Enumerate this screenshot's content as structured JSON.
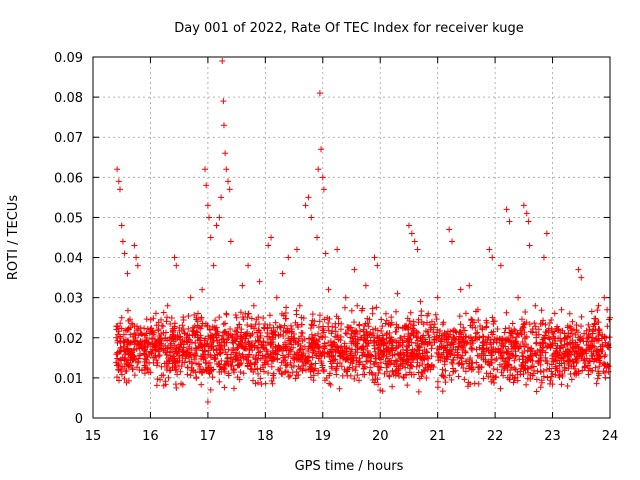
{
  "chart_data": {
    "type": "scatter",
    "title": "Day 001 of 2022, Rate Of TEC Index for receiver kuge",
    "xlabel": "GPS time / hours",
    "ylabel": "ROTI / TECUs",
    "xlim": [
      15,
      24
    ],
    "ylim": [
      0,
      0.09
    ],
    "x_ticks": [
      15,
      16,
      17,
      18,
      19,
      20,
      21,
      22,
      23,
      24
    ],
    "x_tick_labels": [
      "15",
      "16",
      "17",
      "18",
      "19",
      "20",
      "21",
      "22",
      "23",
      "24"
    ],
    "y_ticks": [
      0,
      0.01,
      0.02,
      0.03,
      0.04,
      0.05,
      0.06,
      0.07,
      0.08,
      0.09
    ],
    "y_tick_labels": [
      "0",
      "0.01",
      "0.02",
      "0.03",
      "0.04",
      "0.05",
      "0.06",
      "0.07",
      "0.08",
      "0.09"
    ],
    "grid": true,
    "marker": "+",
    "color": "#ff0000",
    "series": [
      {
        "name": "ROTI",
        "points": [
          [
            15.42,
            0.062
          ],
          [
            15.45,
            0.059
          ],
          [
            15.47,
            0.057
          ],
          [
            15.5,
            0.048
          ],
          [
            15.52,
            0.044
          ],
          [
            15.55,
            0.041
          ],
          [
            15.6,
            0.036
          ],
          [
            15.72,
            0.043
          ],
          [
            15.75,
            0.04
          ],
          [
            15.78,
            0.038
          ],
          [
            15.5,
            0.025
          ],
          [
            15.6,
            0.022
          ],
          [
            15.8,
            0.018
          ],
          [
            15.9,
            0.014
          ],
          [
            16.0,
            0.022
          ],
          [
            16.1,
            0.017
          ],
          [
            16.2,
            0.023
          ],
          [
            16.3,
            0.028
          ],
          [
            16.42,
            0.04
          ],
          [
            16.45,
            0.038
          ],
          [
            16.6,
            0.021
          ],
          [
            16.7,
            0.03
          ],
          [
            16.8,
            0.025
          ],
          [
            16.9,
            0.032
          ],
          [
            16.95,
            0.062
          ],
          [
            16.97,
            0.058
          ],
          [
            17.0,
            0.053
          ],
          [
            17.02,
            0.05
          ],
          [
            17.05,
            0.045
          ],
          [
            17.1,
            0.038
          ],
          [
            17.15,
            0.048
          ],
          [
            17.2,
            0.05
          ],
          [
            17.23,
            0.055
          ],
          [
            17.25,
            0.089
          ],
          [
            17.27,
            0.079
          ],
          [
            17.28,
            0.073
          ],
          [
            17.3,
            0.066
          ],
          [
            17.32,
            0.062
          ],
          [
            17.35,
            0.059
          ],
          [
            17.4,
            0.044
          ],
          [
            17.38,
            0.057
          ],
          [
            17.0,
            0.004
          ],
          [
            17.05,
            0.007
          ],
          [
            17.2,
            0.009
          ],
          [
            17.5,
            0.025
          ],
          [
            17.6,
            0.033
          ],
          [
            17.7,
            0.038
          ],
          [
            17.8,
            0.028
          ],
          [
            17.9,
            0.034
          ],
          [
            18.05,
            0.043
          ],
          [
            18.1,
            0.045
          ],
          [
            18.2,
            0.03
          ],
          [
            18.3,
            0.036
          ],
          [
            18.4,
            0.04
          ],
          [
            18.55,
            0.042
          ],
          [
            18.6,
            0.028
          ],
          [
            18.7,
            0.053
          ],
          [
            18.75,
            0.055
          ],
          [
            18.8,
            0.05
          ],
          [
            18.9,
            0.045
          ],
          [
            18.92,
            0.062
          ],
          [
            18.95,
            0.081
          ],
          [
            18.97,
            0.067
          ],
          [
            19.0,
            0.06
          ],
          [
            19.02,
            0.057
          ],
          [
            19.05,
            0.041
          ],
          [
            19.1,
            0.032
          ],
          [
            19.25,
            0.042
          ],
          [
            19.4,
            0.03
          ],
          [
            19.55,
            0.037
          ],
          [
            19.6,
            0.028
          ],
          [
            19.75,
            0.033
          ],
          [
            19.9,
            0.04
          ],
          [
            19.95,
            0.038
          ],
          [
            20.1,
            0.026
          ],
          [
            20.3,
            0.031
          ],
          [
            20.5,
            0.048
          ],
          [
            20.55,
            0.046
          ],
          [
            20.6,
            0.044
          ],
          [
            20.65,
            0.042
          ],
          [
            20.7,
            0.029
          ],
          [
            20.9,
            0.024
          ],
          [
            21.0,
            0.03
          ],
          [
            21.2,
            0.047
          ],
          [
            21.25,
            0.044
          ],
          [
            21.4,
            0.032
          ],
          [
            21.55,
            0.033
          ],
          [
            21.7,
            0.027
          ],
          [
            21.9,
            0.042
          ],
          [
            21.95,
            0.04
          ],
          [
            22.1,
            0.038
          ],
          [
            22.2,
            0.052
          ],
          [
            22.25,
            0.049
          ],
          [
            22.4,
            0.03
          ],
          [
            22.5,
            0.053
          ],
          [
            22.55,
            0.051
          ],
          [
            22.58,
            0.049
          ],
          [
            22.6,
            0.043
          ],
          [
            22.7,
            0.028
          ],
          [
            22.85,
            0.04
          ],
          [
            22.9,
            0.046
          ],
          [
            23.1,
            0.022
          ],
          [
            23.3,
            0.026
          ],
          [
            23.45,
            0.037
          ],
          [
            23.5,
            0.035
          ],
          [
            23.7,
            0.02
          ],
          [
            23.8,
            0.028
          ],
          [
            23.9,
            0.03
          ],
          [
            23.95,
            0.027
          ],
          [
            24.0,
            0.025
          ]
        ]
      }
    ],
    "background_noise": {
      "x_range": [
        15.4,
        24.0
      ],
      "y_range": [
        0.005,
        0.028
      ],
      "approx_count": 2600
    }
  }
}
